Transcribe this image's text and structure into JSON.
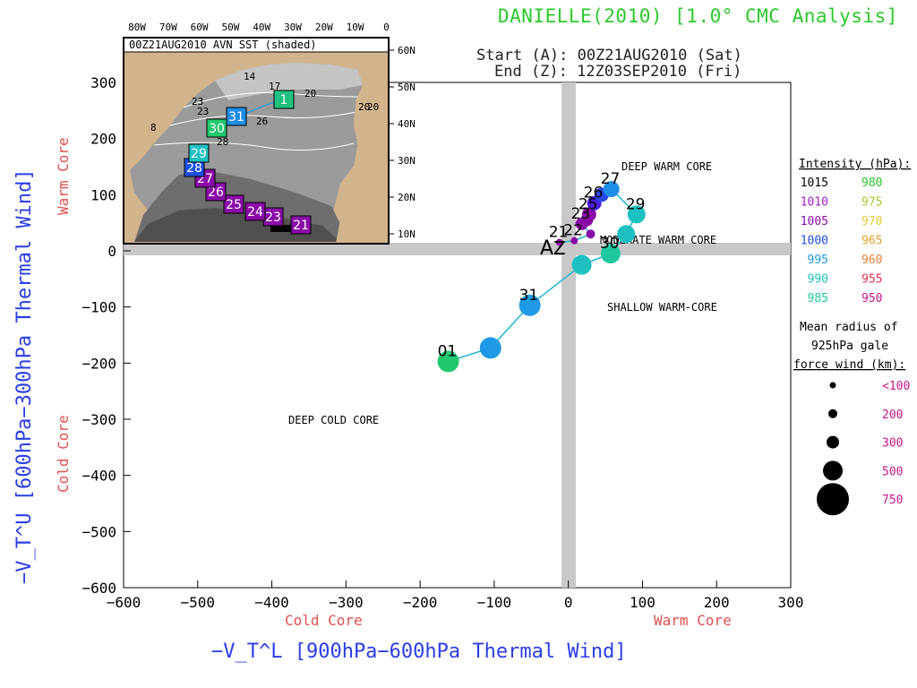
{
  "header": {
    "title": "DANIELLE(2010) [1.0° CMC Analysis]",
    "start": "Start (A): 00Z21AUG2010 (Sat)",
    "end": "End (Z): 12Z03SEP2010 (Fri)"
  },
  "inset": {
    "title": "00Z21AUG2010 AVN SST (shaded)",
    "lon_labels": [
      "80W",
      "70W",
      "60W",
      "50W",
      "40W",
      "30W",
      "20W",
      "10W",
      "0"
    ],
    "lat_labels": [
      "60N",
      "50N",
      "40N",
      "30N",
      "20N",
      "10N"
    ],
    "sst_labels": [
      "14",
      "17",
      "20",
      "20",
      "23",
      "26",
      "28",
      "23",
      "8",
      "20"
    ],
    "track_days": [
      "21",
      "23",
      "24",
      "25",
      "26",
      "27",
      "28",
      "29",
      "30",
      "31",
      "1"
    ],
    "track_colors": [
      "#8a0aa8",
      "#8a0aa8",
      "#8a0aa8",
      "#8a0aa8",
      "#8a0aa8",
      "#8a0aa8",
      "#1e50e6",
      "#1ec0c0",
      "#20c86e",
      "#1e8ee6",
      "#20c080"
    ]
  },
  "chart_data": {
    "type": "scatter",
    "xlabel": "−V_T^L [900hPa−600hPa Thermal Wind]",
    "ylabel": "−V_T^U [600hPa−300hPa Thermal Wind]",
    "xlim": [
      -600,
      300
    ],
    "ylim": [
      -600,
      300
    ],
    "x_ticks": [
      "−600",
      "−500",
      "−400",
      "−300",
      "−200",
      "−100",
      "0",
      "100",
      "200",
      "300"
    ],
    "y_ticks": [
      "300",
      "200",
      "100",
      "0",
      "−100",
      "−200",
      "−300",
      "−400",
      "−500",
      "−600"
    ],
    "x_side_labels": {
      "left": "Cold Core",
      "right": "Warm Core"
    },
    "y_side_labels": {
      "top": "Warm Core",
      "bottom": "Cold Core"
    },
    "quadrant_labels": {
      "deep_warm": "DEEP WARM CORE",
      "moderate_warm": "MODERATE WARM CORE",
      "shallow_warm": "SHALLOW WARM-CORE",
      "deep_cold": "DEEP COLD CORE"
    },
    "start_marker": "A",
    "end_marker": "Z",
    "points": [
      {
        "x": -12,
        "y": 15,
        "color": "#8a0aa8",
        "r": 4,
        "label": "21"
      },
      {
        "x": 8,
        "y": 18,
        "color": "#8a0aa8",
        "r": 4,
        "label": "22"
      },
      {
        "x": 30,
        "y": 30,
        "color": "#8a0aa8",
        "r": 5,
        "label": ""
      },
      {
        "x": 18,
        "y": 48,
        "color": "#8a0aa8",
        "r": 7,
        "label": "23"
      },
      {
        "x": 25,
        "y": 55,
        "color": "#8a0aa8",
        "r": 7,
        "label": ""
      },
      {
        "x": 28,
        "y": 65,
        "color": "#8a0aa8",
        "r": 8,
        "label": "25"
      },
      {
        "x": 35,
        "y": 85,
        "color": "#4a1ee0",
        "r": 8,
        "label": "26"
      },
      {
        "x": 45,
        "y": 100,
        "color": "#2a48e6",
        "r": 8,
        "label": ""
      },
      {
        "x": 58,
        "y": 110,
        "color": "#1e8ee6",
        "r": 9,
        "label": "27"
      },
      {
        "x": 92,
        "y": 65,
        "color": "#1ec0c0",
        "r": 10,
        "label": "29"
      },
      {
        "x": 78,
        "y": 30,
        "color": "#1ec0c0",
        "r": 10,
        "label": ""
      },
      {
        "x": 57,
        "y": -5,
        "color": "#20c8a0",
        "r": 11,
        "label": "30"
      },
      {
        "x": 18,
        "y": -25,
        "color": "#1ec0c0",
        "r": 11,
        "label": ""
      },
      {
        "x": -52,
        "y": -97,
        "color": "#1e9ae6",
        "r": 12,
        "label": "31"
      },
      {
        "x": -105,
        "y": -173,
        "color": "#1e9ae6",
        "r": 12,
        "label": ""
      },
      {
        "x": -162,
        "y": -197,
        "color": "#20c86e",
        "r": 12,
        "label": "01"
      }
    ]
  },
  "legend": {
    "intensity_title": "Intensity (hPa):",
    "pressures": [
      {
        "left": "1015",
        "left_color": "#000000",
        "right": "980",
        "right_color": "#2cc82c"
      },
      {
        "left": "1010",
        "left_color": "#a020c8",
        "right": "975",
        "right_color": "#a0c832"
      },
      {
        "left": "1005",
        "left_color": "#8a0aa8",
        "right": "970",
        "right_color": "#e6c832"
      },
      {
        "left": "1000",
        "left_color": "#1e50e6",
        "right": "965",
        "right_color": "#e6a032"
      },
      {
        "left": "995",
        "left_color": "#1e9ae6",
        "right": "960",
        "right_color": "#e68232"
      },
      {
        "left": "990",
        "left_color": "#1ec0c0",
        "right": "955",
        "right_color": "#e63250"
      },
      {
        "left": "985",
        "left_color": "#20c8a0",
        "right": "950",
        "right_color": "#c8148c"
      }
    ],
    "radius_title_1": "Mean radius of",
    "radius_title_2": "925hPa gale",
    "radius_title_3": "force wind (km):",
    "radii": [
      "<100",
      "200",
      "300",
      "500",
      "750"
    ]
  }
}
